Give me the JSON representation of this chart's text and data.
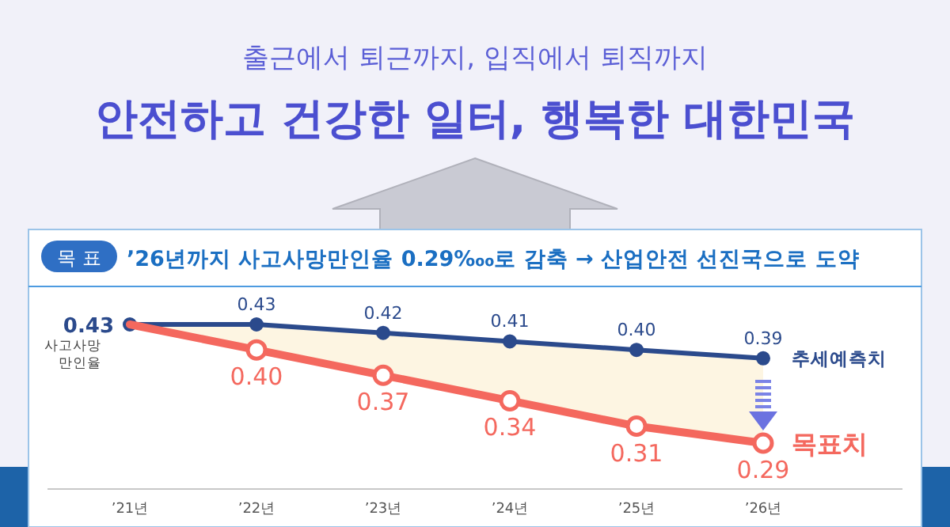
{
  "chart_data": {
    "type": "line",
    "subtitle": "출근에서 퇴근까지, 입직에서 퇴직까지",
    "title": "안전하고 건강한 일터, 행복한 대한민국",
    "annotations": [
      "목 표",
      "’26년까지 사고사망만인율 0.29‱로 감축 → 산업안전 선진국으로 도약"
    ],
    "ylabel": "사고사망 만인율",
    "categories": [
      "’21년",
      "’22년",
      "’23년",
      "’24년",
      "’25년",
      "’26년"
    ],
    "marker": "circle",
    "series": [
      {
        "name": "추세예측치",
        "color": "#2b4a8c",
        "values": [
          0.43,
          0.43,
          0.42,
          0.41,
          0.4,
          0.39
        ],
        "lower": [
          0.43,
          0.4,
          0.37,
          0.34,
          0.31,
          0.29
        ],
        "upper": [
          0.43,
          0.43,
          0.42,
          0.41,
          0.4,
          0.39
        ],
        "value_labels": [
          "0.43",
          "0.43",
          "0.42",
          "0.41",
          "0.40",
          "0.39"
        ]
      },
      {
        "name": "목표치",
        "color": "#f4685e",
        "values": [
          0.43,
          0.4,
          0.37,
          0.34,
          0.31,
          0.29
        ],
        "value_labels": [
          null,
          "0.40",
          "0.37",
          "0.34",
          "0.31",
          "0.29"
        ]
      }
    ]
  }
}
